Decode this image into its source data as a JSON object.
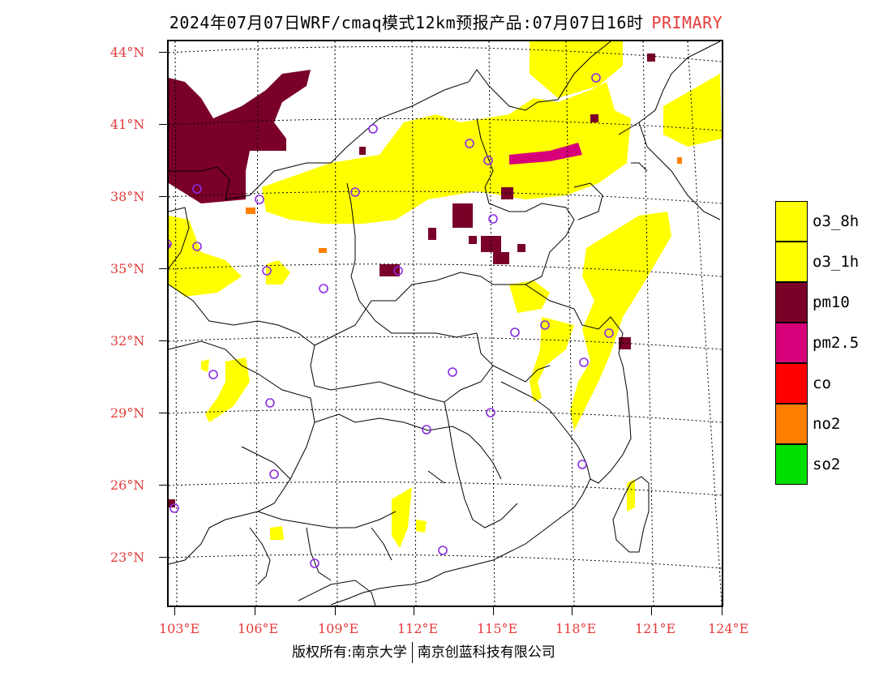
{
  "header": {
    "title": "2024年07月07日WRF/cmaq模式12km预报产品:07月07日16时",
    "tag": "PRIMARY"
  },
  "axes": {
    "lat_labels": [
      "44°N",
      "41°N",
      "38°N",
      "35°N",
      "32°N",
      "29°N",
      "26°N",
      "23°N"
    ],
    "lon_labels": [
      "103°E",
      "106°E",
      "109°E",
      "112°E",
      "115°E",
      "118°E",
      "121°E",
      "124°E"
    ]
  },
  "legend": {
    "items": [
      {
        "label": "o3_8h",
        "color": "#ffff00"
      },
      {
        "label": "o3_1h",
        "color": "#ffff00"
      },
      {
        "label": "pm10",
        "color": "#7a0028"
      },
      {
        "label": "pm2.5",
        "color": "#d8007a"
      },
      {
        "label": "co",
        "color": "#ff0000"
      },
      {
        "label": "no2",
        "color": "#ff7f00"
      },
      {
        "label": "so2",
        "color": "#00e000"
      }
    ]
  },
  "footer": {
    "left": "版权所有:南京大学",
    "right": "南京创蓝科技有限公司"
  },
  "colors": {
    "axis_label": "#e53b3b",
    "station_marker": "#8a2be2",
    "boundary": "#000000"
  }
}
